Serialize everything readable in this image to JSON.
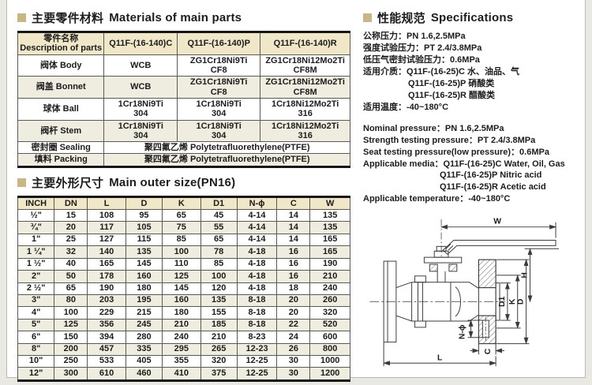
{
  "palette": {
    "accent": "#c9b687",
    "table_header_bg": "#f0e6c8",
    "row_alt_bg": "#efece0",
    "frame": "#b9b9b3"
  },
  "sections": {
    "materials": {
      "title_cn": "主要零件材料",
      "title_en": "Materials of main parts"
    },
    "dimensions": {
      "title_cn": "主要外形尺寸",
      "title_en": "Main outer size(PN16)"
    },
    "specs": {
      "title_cn": "性能规范",
      "title_en": "Specifications"
    }
  },
  "materials_table": {
    "headers": [
      "零件名称\nDescription of parts",
      "Q11F-(16-140)C",
      "Q11F-(16-140)P",
      "Q11F-(16-140)R"
    ],
    "rows": [
      [
        "阀体 Body",
        "WCB",
        "ZG1Cr18Ni9Ti\nCF8",
        "ZG1Cr18Ni12Mo2Ti\nCF8M"
      ],
      [
        "阀盖 Bonnet",
        "WCB",
        "ZG1Cr18Ni9Ti\nCF8",
        "ZG1Cr18Ni12Mo2Ti\nCF8M"
      ],
      [
        "球体 Ball",
        "1Cr18Ni9Ti\n304",
        "1Cr18Ni9Ti\n304",
        "1Cr18Ni12Mo2Ti\n316"
      ],
      [
        "阀杆 Stem",
        "1Cr18Ni9Ti\n304",
        "1Cr18Ni9Ti\n304",
        "1Cr18Ni12Mo2Ti\n316"
      ],
      [
        "密封圈 Sealing",
        "聚四氟乙烯 Polytetrafluorethylene(PTFE)"
      ],
      [
        "填料 Packing",
        "聚四氟乙烯 Polytetrafluorethylene(PTFE)"
      ]
    ]
  },
  "dimensions_table": {
    "headers": [
      "INCH",
      "DN",
      "L",
      "D",
      "K",
      "D1",
      "N-ϕ",
      "C",
      "W"
    ],
    "rows": [
      [
        "½\"",
        "15",
        "108",
        "95",
        "65",
        "45",
        "4-14",
        "14",
        "135"
      ],
      [
        "¾\"",
        "20",
        "117",
        "105",
        "75",
        "55",
        "4-14",
        "14",
        "135"
      ],
      [
        "1\"",
        "25",
        "127",
        "115",
        "85",
        "65",
        "4-14",
        "14",
        "165"
      ],
      [
        "1 ¼\"",
        "32",
        "140",
        "135",
        "100",
        "78",
        "4-18",
        "16",
        "165"
      ],
      [
        "1 ½\"",
        "40",
        "165",
        "145",
        "110",
        "85",
        "4-18",
        "16",
        "190"
      ],
      [
        "2\"",
        "50",
        "178",
        "160",
        "125",
        "100",
        "4-18",
        "16",
        "210"
      ],
      [
        "2 ½\"",
        "65",
        "190",
        "180",
        "145",
        "120",
        "4-18",
        "18",
        "240"
      ],
      [
        "3\"",
        "80",
        "203",
        "195",
        "160",
        "135",
        "8-18",
        "20",
        "260"
      ],
      [
        "4\"",
        "100",
        "229",
        "215",
        "180",
        "155",
        "8-18",
        "20",
        "320"
      ],
      [
        "5\"",
        "125",
        "356",
        "245",
        "210",
        "185",
        "8-18",
        "22",
        "520"
      ],
      [
        "6\"",
        "150",
        "394",
        "280",
        "240",
        "210",
        "8-23",
        "24",
        "600"
      ],
      [
        "8\"",
        "200",
        "457",
        "335",
        "295",
        "265",
        "12-23",
        "26",
        "800"
      ],
      [
        "10\"",
        "250",
        "533",
        "405",
        "355",
        "320",
        "12-25",
        "30",
        "1000"
      ],
      [
        "12\"",
        "300",
        "610",
        "460",
        "410",
        "375",
        "12-25",
        "30",
        "1200"
      ]
    ]
  },
  "specs": {
    "cn_lines": [
      "公称压力：PN 1.6,2.5MPa",
      "强度试验压力：PT 2.4/3.8MPa",
      "低压气密封试验压力：0.6MPa",
      "适用介质：Q11F-(16-25)C 水、油品、气",
      "Q11F-(16-25)P 硝酸类",
      "Q11F-(16-25)R 醋酸类",
      "适用温度：-40~180°C"
    ],
    "en_lines": [
      "Nominal pressure：PN 1.6,2.5MPa",
      "Strength testing pressure：PT 2.4/3.8MPa",
      "Seat testing pressure(low pressure)：0.6MPa",
      "Applicable media：Q11F-(16-25)C Water, Oil, Gas",
      "Q11F-(16-25)P Nitric acid",
      "Q11F-(16-25)R Acetic acid",
      "Applicable temperature：-40~180°C"
    ]
  },
  "drawing": {
    "labels": {
      "w": "W",
      "h": "H",
      "d1": "D1",
      "k": "K",
      "d": "D",
      "nphi": "N-ϕ",
      "c": "C",
      "l": "L"
    }
  }
}
